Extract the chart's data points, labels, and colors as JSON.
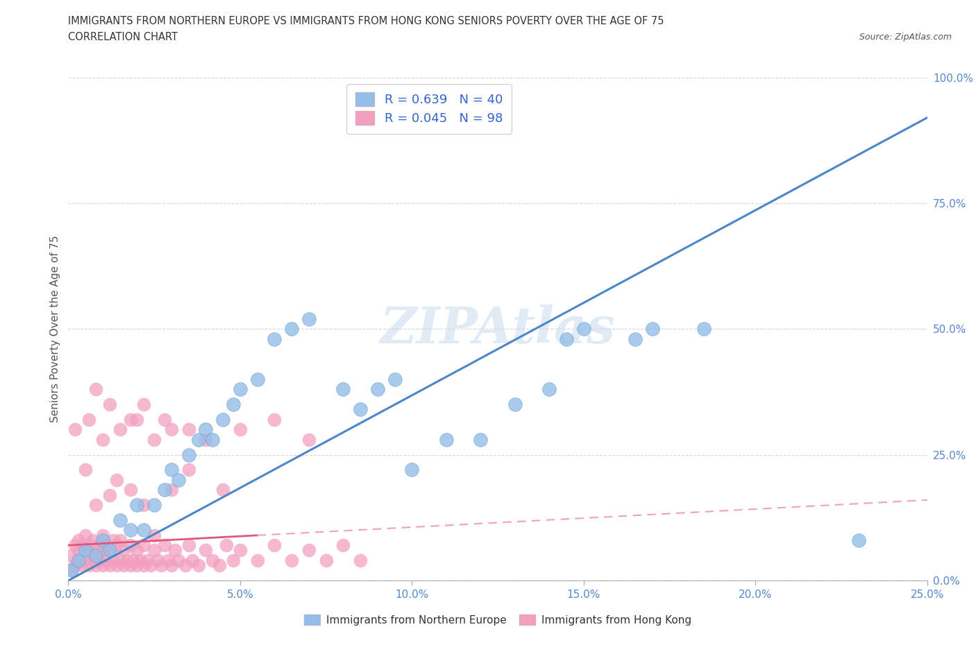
{
  "title_line1": "IMMIGRANTS FROM NORTHERN EUROPE VS IMMIGRANTS FROM HONG KONG SENIORS POVERTY OVER THE AGE OF 75",
  "title_line2": "CORRELATION CHART",
  "source": "Source: ZipAtlas.com",
  "ylabel": "Seniors Poverty Over the Age of 75",
  "watermark": "ZIPAtlas",
  "legend_label1": "Immigrants from Northern Europe",
  "legend_label2": "Immigrants from Hong Kong",
  "r1": 0.639,
  "n1": 40,
  "r2": 0.045,
  "n2": 98,
  "blue_color": "#92BEE8",
  "blue_edge_color": "#6A9FD4",
  "pink_color": "#F2A0BE",
  "pink_edge_color": "#E07090",
  "blue_line_color": "#4A86C8",
  "pink_line_color": "#E05878",
  "pink_dash_color": "#F0A0B8",
  "grid_color": "#CCCCCC",
  "background_color": "#FFFFFF",
  "xlim": [
    0.0,
    0.25
  ],
  "ylim": [
    0.0,
    1.0
  ],
  "blue_scatter_x": [
    0.001,
    0.003,
    0.005,
    0.008,
    0.01,
    0.012,
    0.015,
    0.018,
    0.02,
    0.022,
    0.025,
    0.028,
    0.03,
    0.032,
    0.035,
    0.038,
    0.04,
    0.042,
    0.045,
    0.048,
    0.05,
    0.055,
    0.06,
    0.065,
    0.07,
    0.08,
    0.085,
    0.09,
    0.095,
    0.1,
    0.11,
    0.12,
    0.13,
    0.14,
    0.145,
    0.15,
    0.165,
    0.17,
    0.185,
    0.23
  ],
  "blue_scatter_y": [
    0.02,
    0.04,
    0.06,
    0.05,
    0.08,
    0.06,
    0.12,
    0.1,
    0.15,
    0.1,
    0.15,
    0.18,
    0.22,
    0.2,
    0.25,
    0.28,
    0.3,
    0.28,
    0.32,
    0.35,
    0.38,
    0.4,
    0.48,
    0.5,
    0.52,
    0.38,
    0.34,
    0.38,
    0.4,
    0.22,
    0.28,
    0.28,
    0.35,
    0.38,
    0.48,
    0.5,
    0.48,
    0.5,
    0.5,
    0.08
  ],
  "pink_scatter_x": [
    0.001,
    0.001,
    0.002,
    0.002,
    0.003,
    0.003,
    0.003,
    0.004,
    0.004,
    0.005,
    0.005,
    0.005,
    0.006,
    0.006,
    0.007,
    0.007,
    0.008,
    0.008,
    0.009,
    0.009,
    0.01,
    0.01,
    0.01,
    0.011,
    0.011,
    0.012,
    0.012,
    0.013,
    0.013,
    0.014,
    0.014,
    0.015,
    0.015,
    0.016,
    0.016,
    0.017,
    0.018,
    0.018,
    0.019,
    0.02,
    0.02,
    0.021,
    0.022,
    0.022,
    0.023,
    0.024,
    0.025,
    0.025,
    0.026,
    0.027,
    0.028,
    0.029,
    0.03,
    0.031,
    0.032,
    0.034,
    0.035,
    0.036,
    0.038,
    0.04,
    0.042,
    0.044,
    0.046,
    0.048,
    0.05,
    0.055,
    0.06,
    0.065,
    0.07,
    0.075,
    0.08,
    0.085,
    0.002,
    0.006,
    0.01,
    0.015,
    0.02,
    0.025,
    0.03,
    0.035,
    0.04,
    0.05,
    0.06,
    0.07,
    0.008,
    0.012,
    0.018,
    0.022,
    0.028,
    0.014,
    0.008,
    0.012,
    0.005,
    0.018,
    0.022,
    0.03,
    0.035,
    0.045
  ],
  "pink_scatter_y": [
    0.02,
    0.05,
    0.03,
    0.07,
    0.04,
    0.06,
    0.08,
    0.03,
    0.07,
    0.04,
    0.06,
    0.09,
    0.03,
    0.07,
    0.04,
    0.08,
    0.03,
    0.06,
    0.04,
    0.07,
    0.03,
    0.06,
    0.09,
    0.04,
    0.07,
    0.03,
    0.06,
    0.04,
    0.08,
    0.03,
    0.07,
    0.04,
    0.08,
    0.03,
    0.06,
    0.04,
    0.03,
    0.07,
    0.04,
    0.03,
    0.06,
    0.04,
    0.03,
    0.07,
    0.04,
    0.03,
    0.06,
    0.09,
    0.04,
    0.03,
    0.07,
    0.04,
    0.03,
    0.06,
    0.04,
    0.03,
    0.07,
    0.04,
    0.03,
    0.06,
    0.04,
    0.03,
    0.07,
    0.04,
    0.06,
    0.04,
    0.07,
    0.04,
    0.06,
    0.04,
    0.07,
    0.04,
    0.3,
    0.32,
    0.28,
    0.3,
    0.32,
    0.28,
    0.3,
    0.3,
    0.28,
    0.3,
    0.32,
    0.28,
    0.38,
    0.35,
    0.32,
    0.35,
    0.32,
    0.2,
    0.15,
    0.17,
    0.22,
    0.18,
    0.15,
    0.18,
    0.22,
    0.18
  ]
}
